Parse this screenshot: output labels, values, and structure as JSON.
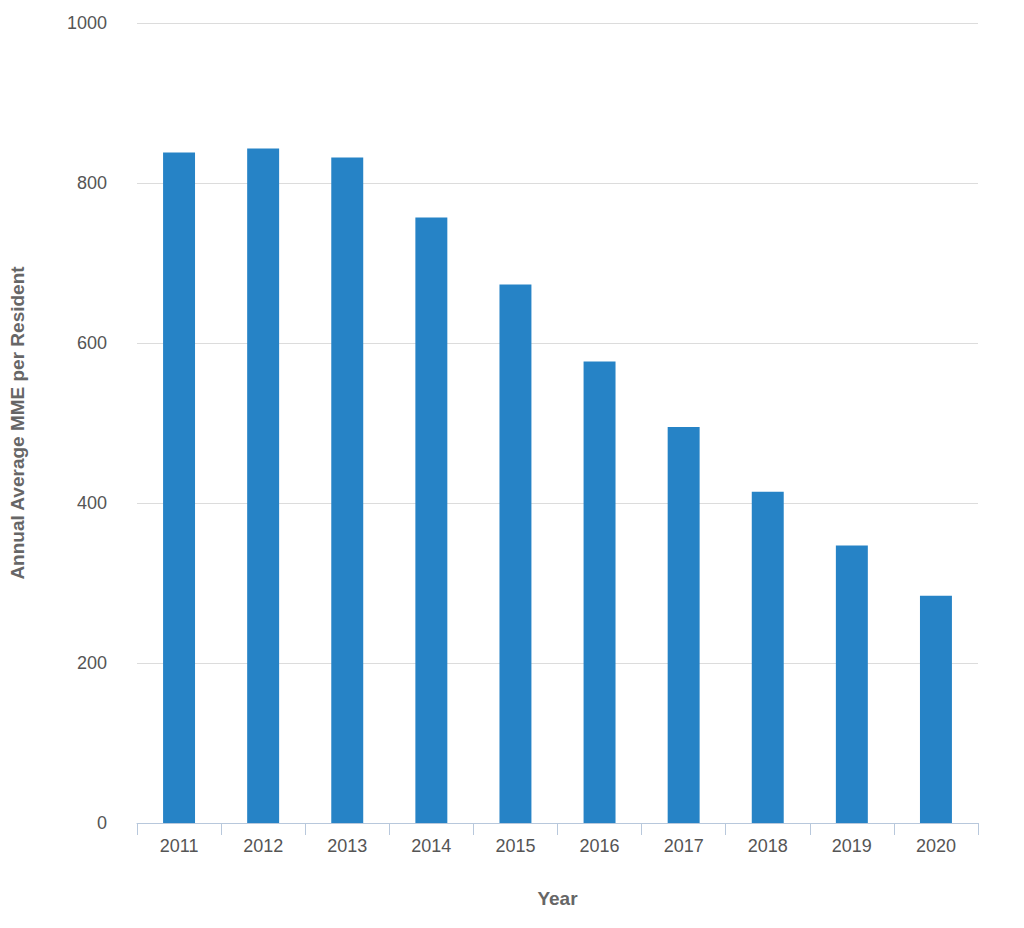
{
  "chart_data": {
    "type": "bar",
    "x_label": "Year",
    "y_label": "Annual Average MME per Resident",
    "categories": [
      "2011",
      "2012",
      "2013",
      "2014",
      "2015",
      "2016",
      "2017",
      "2018",
      "2019",
      "2020"
    ],
    "values": [
      838,
      843,
      832,
      757,
      673,
      577,
      495,
      414,
      347,
      284
    ],
    "color": "#2683c6",
    "ylim": [
      0,
      1000
    ],
    "yticks": [
      0,
      200,
      400,
      600,
      800,
      1000
    ],
    "grid": true
  }
}
